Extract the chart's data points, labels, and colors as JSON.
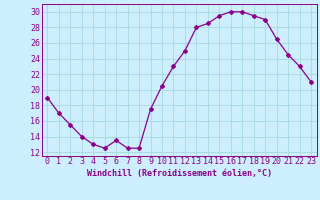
{
  "x": [
    0,
    1,
    2,
    3,
    4,
    5,
    6,
    7,
    8,
    9,
    10,
    11,
    12,
    13,
    14,
    15,
    16,
    17,
    18,
    19,
    20,
    21,
    22,
    23
  ],
  "y": [
    19,
    17,
    15.5,
    14,
    13,
    12.5,
    13.5,
    12.5,
    12.5,
    17.5,
    20.5,
    23,
    25,
    28,
    28.5,
    29.5,
    30,
    30,
    29.5,
    29,
    26.5,
    24.5,
    23,
    21
  ],
  "line_color": "#8B008B",
  "marker": "D",
  "marker_size": 2,
  "bg_color": "#cceeff",
  "grid_color": "#aadddd",
  "xlabel": "Windchill (Refroidissement éolien,°C)",
  "xlabel_fontsize": 6,
  "tick_fontsize": 6,
  "ylabel_ticks": [
    12,
    14,
    16,
    18,
    20,
    22,
    24,
    26,
    28,
    30
  ],
  "ylim": [
    11.5,
    31.0
  ],
  "xlim": [
    -0.5,
    23.5
  ],
  "xticks": [
    0,
    1,
    2,
    3,
    4,
    5,
    6,
    7,
    8,
    9,
    10,
    11,
    12,
    13,
    14,
    15,
    16,
    17,
    18,
    19,
    20,
    21,
    22,
    23
  ]
}
